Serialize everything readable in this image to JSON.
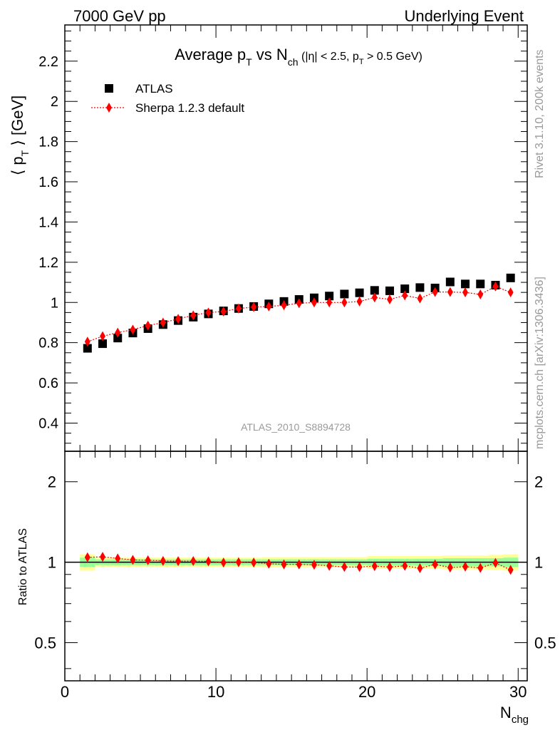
{
  "header": {
    "left": "7000 GeV pp",
    "right": "Underlying Event"
  },
  "side_text": {
    "rivet": "Rivet 3.1.10,  200k events",
    "mcplots": "mcplots.cern.ch [arXiv:1306.3436]"
  },
  "chart_data": [
    {
      "type": "scatter",
      "title": {
        "main": "Average p",
        "main_sub": "T",
        "vs": " vs N",
        "vs_sub": "ch",
        "cut_open": " (|η| < 2.5, p",
        "cut_sub": "T",
        "cut_close": " > 0.5 GeV)"
      },
      "ylabel": {
        "open": "⟨ p",
        "sub": "T",
        "close": " ⟩ [GeV]"
      },
      "xlabel": {
        "main": "N",
        "sub": "chg"
      },
      "xlim": [
        0,
        30.6
      ],
      "ylim": [
        0.26,
        2.38
      ],
      "yticks": [
        0.4,
        0.6,
        0.8,
        1.0,
        1.2,
        1.4,
        1.6,
        1.8,
        2.0,
        2.2
      ],
      "ytick_labels": [
        "0.4",
        "0.6",
        "0.8",
        "1",
        "1.2",
        "1.4",
        "1.6",
        "1.8",
        "2",
        "2.2"
      ],
      "xticks": [
        0,
        10,
        20,
        30
      ],
      "xtick_labels": [
        "0",
        "10",
        "20",
        "30"
      ],
      "legend_position": "top-left",
      "watermark": "ATLAS_2010_S8894728",
      "x": [
        1.5,
        2.5,
        3.5,
        4.5,
        5.5,
        6.5,
        7.5,
        8.5,
        9.5,
        10.5,
        11.5,
        12.5,
        13.5,
        14.5,
        15.5,
        16.5,
        17.5,
        18.5,
        19.5,
        20.5,
        21.5,
        22.5,
        23.5,
        24.5,
        25.5,
        26.5,
        27.5,
        28.5,
        29.5
      ],
      "series": [
        {
          "name": "ATLAS",
          "color": "#000000",
          "marker": "square",
          "values": [
            0.772,
            0.795,
            0.823,
            0.848,
            0.87,
            0.89,
            0.91,
            0.927,
            0.943,
            0.958,
            0.97,
            0.98,
            0.993,
            1.005,
            1.015,
            1.023,
            1.032,
            1.042,
            1.048,
            1.06,
            1.058,
            1.068,
            1.074,
            1.072,
            1.102,
            1.092,
            1.092,
            1.086,
            1.122
          ]
        },
        {
          "name": "Sherpa 1.2.3 default",
          "color": "#ff0000",
          "marker": "diamond",
          "values": [
            0.805,
            0.832,
            0.85,
            0.865,
            0.885,
            0.9,
            0.918,
            0.936,
            0.95,
            0.955,
            0.97,
            0.977,
            0.98,
            0.986,
            0.996,
            1.0,
            1.0,
            1.0,
            1.005,
            1.025,
            1.015,
            1.035,
            1.02,
            1.052,
            1.052,
            1.05,
            1.04,
            1.08,
            1.05
          ]
        }
      ]
    },
    {
      "type": "scatter",
      "ylabel": "Ratio to ATLAS",
      "ylog": true,
      "ylim": [
        0.36,
        2.6
      ],
      "yticks": [
        0.5,
        1,
        2
      ],
      "ytick_labels": [
        "0.5",
        "1",
        "2"
      ],
      "xlim": [
        0,
        30.6
      ],
      "reference_line": 1,
      "band_colors": {
        "inner": "#99ff99",
        "outer": "#ffff99"
      },
      "x": [
        1.5,
        2.5,
        3.5,
        4.5,
        5.5,
        6.5,
        7.5,
        8.5,
        9.5,
        10.5,
        11.5,
        12.5,
        13.5,
        14.5,
        15.5,
        16.5,
        17.5,
        18.5,
        19.5,
        20.5,
        21.5,
        22.5,
        23.5,
        24.5,
        25.5,
        26.5,
        27.5,
        28.5,
        29.5
      ],
      "band_inner": [
        0.04,
        0.025,
        0.025,
        0.025,
        0.025,
        0.025,
        0.025,
        0.025,
        0.025,
        0.025,
        0.025,
        0.025,
        0.025,
        0.025,
        0.025,
        0.025,
        0.025,
        0.025,
        0.025,
        0.03,
        0.03,
        0.03,
        0.03,
        0.03,
        0.035,
        0.035,
        0.035,
        0.035,
        0.04
      ],
      "band_outer": [
        0.07,
        0.04,
        0.04,
        0.04,
        0.04,
        0.04,
        0.04,
        0.04,
        0.04,
        0.04,
        0.04,
        0.04,
        0.045,
        0.045,
        0.045,
        0.045,
        0.045,
        0.045,
        0.045,
        0.055,
        0.055,
        0.055,
        0.055,
        0.055,
        0.06,
        0.06,
        0.06,
        0.065,
        0.07
      ],
      "series": [
        {
          "name": "Sherpa 1.2.3 default",
          "color": "#ff0000",
          "marker": "diamond",
          "values": [
            1.043,
            1.047,
            1.033,
            1.02,
            1.017,
            1.011,
            1.009,
            1.01,
            1.007,
            0.997,
            1.0,
            0.997,
            0.987,
            0.981,
            0.981,
            0.978,
            0.969,
            0.96,
            0.959,
            0.967,
            0.959,
            0.969,
            0.95,
            0.981,
            0.955,
            0.962,
            0.952,
            0.994,
            0.936
          ]
        }
      ]
    }
  ]
}
